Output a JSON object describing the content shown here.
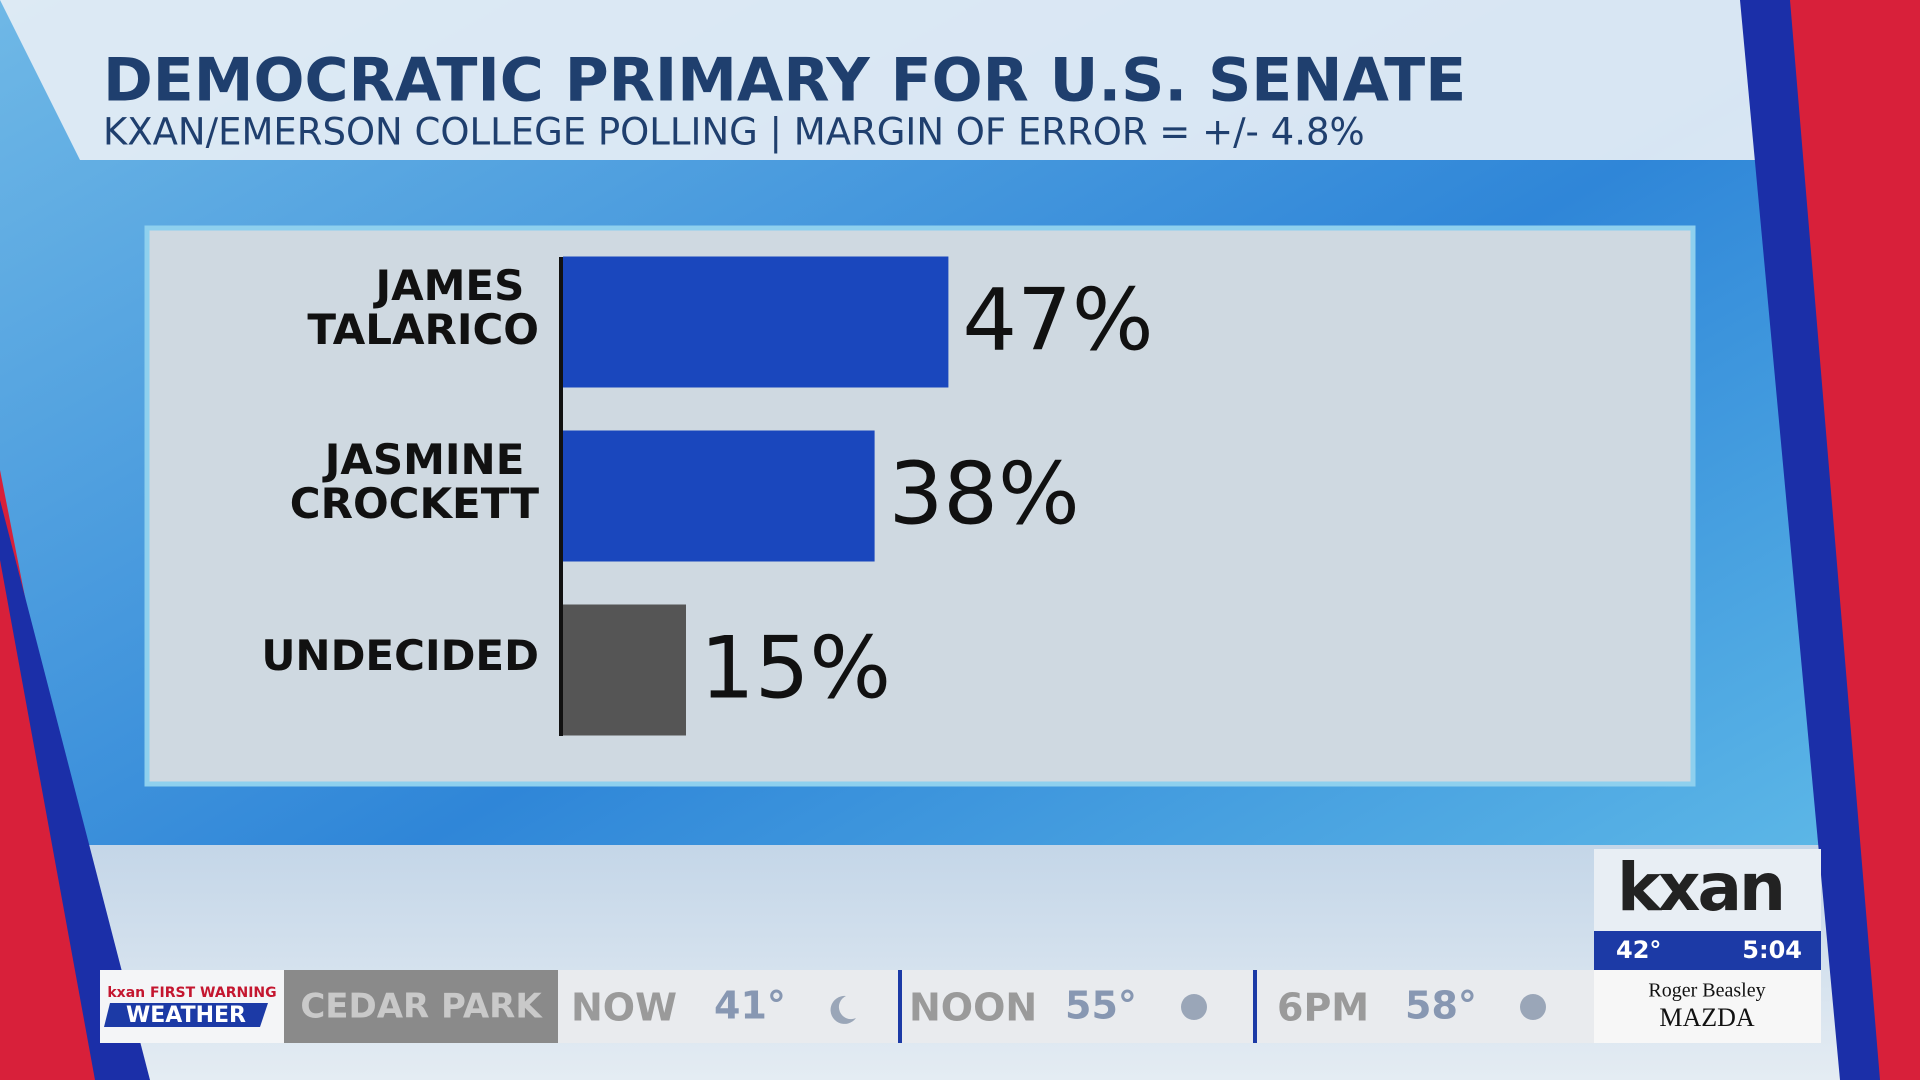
{
  "chart_data": {
    "type": "hbar",
    "title": "DEMOCRATIC PRIMARY FOR U.S. SENATE",
    "subtitle": "KXAN/EMERSON COLLEGE POLLING | MARGIN OF ERROR = +/- 4.8%",
    "categories": [
      "JAMES TALARICO",
      "JASMINE CROCKETT",
      "UNDECIDED"
    ],
    "values": [
      47,
      38,
      15
    ],
    "value_labels": [
      "47%",
      "38%",
      "15%"
    ],
    "colors": [
      "#1a47bd",
      "#1a47bd",
      "#555555"
    ]
  },
  "ticker": {
    "brand_top": "kxan FIRST WARNING",
    "brand": "WEATHER",
    "location": "CEDAR PARK",
    "slots": [
      {
        "label": "NOW",
        "temp": "41°"
      },
      {
        "label": "NOON",
        "temp": "55°"
      },
      {
        "label": "6PM",
        "temp": "58°"
      }
    ],
    "sponsor_top": "Roger Beasley",
    "sponsor": "MAZDA"
  },
  "station": {
    "logo": "kxan",
    "temp": "42°",
    "time": "5:04"
  }
}
